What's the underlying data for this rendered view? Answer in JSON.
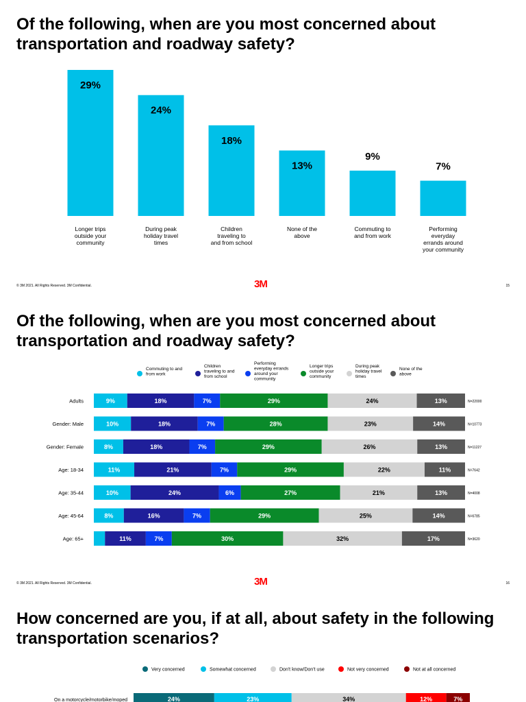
{
  "colors": {
    "commuting": "#00c0e8",
    "children": "#1f1f9a",
    "errands": "#0a3ef0",
    "longer": "#0a8a2a",
    "holiday": "#d3d3d3",
    "none": "#595959",
    "very": "#0a6a78",
    "somewhat": "#00c0e8",
    "dontknow": "#d3d3d3",
    "notvery": "#ff0000",
    "notatall": "#8b0000",
    "logo": "#ff0000"
  },
  "slides": [
    {
      "title": "Of the following, when are you most concerned about transportation and roadway safety?",
      "footer": {
        "copyright": "© 3M 2021. All Rights Reserved. 3M Confidential.",
        "logo": "3M",
        "page": "15"
      }
    },
    {
      "title": "Of the following, when are you most concerned about transportation and roadway safety?",
      "footer": {
        "copyright": "© 3M 2021. All Rights Reserved. 3M Confidential.",
        "logo": "3M",
        "page": "16"
      }
    },
    {
      "title": "How concerned are you, if at all, about safety in the following transportation scenarios?"
    }
  ],
  "chart_data": [
    {
      "type": "bar",
      "categories": [
        "Longer trips outside your community",
        "During peak holiday travel times",
        "Children traveling to and from school",
        "None of the above",
        "Commuting to and from work",
        "Performing everyday errands around your community"
      ],
      "category_lines": [
        [
          "Longer trips",
          "outside your",
          "community"
        ],
        [
          "During peak",
          "holiday travel",
          "times"
        ],
        [
          "Children",
          "traveling to",
          "and from school"
        ],
        [
          "None of the",
          "above"
        ],
        [
          "Commuting to",
          "and from work"
        ],
        [
          "Performing",
          "everyday",
          "errands around",
          "your community"
        ]
      ],
      "values": [
        29,
        24,
        18,
        13,
        9,
        7
      ],
      "data_labels": [
        "29%",
        "24%",
        "18%",
        "13%",
        "9%",
        "7%"
      ],
      "ylim": [
        0,
        29
      ],
      "grid": false,
      "color": "#00c0e8"
    },
    {
      "type": "bar",
      "stacked": true,
      "orientation": "horizontal",
      "legend_position": "top",
      "legend": [
        {
          "key": "commuting",
          "lines": [
            "Commuting to and",
            "from work"
          ]
        },
        {
          "key": "children",
          "lines": [
            "Children",
            "traveling to and",
            "from school"
          ]
        },
        {
          "key": "errands",
          "lines": [
            "Performing",
            "everyday errands",
            "around your",
            "community"
          ]
        },
        {
          "key": "longer",
          "lines": [
            "Longer trips",
            "outside your",
            "community"
          ]
        },
        {
          "key": "holiday",
          "lines": [
            "During peak",
            "holiday travel",
            "times"
          ]
        },
        {
          "key": "none",
          "lines": [
            "None of the",
            "above"
          ]
        }
      ],
      "series": [
        {
          "name": "Commuting to and from work",
          "key": "commuting",
          "values": [
            9,
            10,
            8,
            11,
            10,
            8,
            3
          ]
        },
        {
          "name": "Children traveling to and from school",
          "key": "children",
          "values": [
            18,
            18,
            18,
            21,
            24,
            16,
            11
          ]
        },
        {
          "name": "Performing everyday errands around your community",
          "key": "errands",
          "values": [
            7,
            7,
            7,
            7,
            6,
            7,
            7
          ]
        },
        {
          "name": "Longer trips outside your community",
          "key": "longer",
          "values": [
            29,
            28,
            29,
            29,
            27,
            29,
            30
          ]
        },
        {
          "name": "During peak holiday travel times",
          "key": "holiday",
          "values": [
            24,
            23,
            26,
            22,
            21,
            25,
            32
          ]
        },
        {
          "name": "None of the above",
          "key": "none",
          "values": [
            13,
            14,
            13,
            11,
            13,
            14,
            17
          ]
        }
      ],
      "rows": [
        {
          "label": "Adults",
          "n": "N=22000",
          "labels": [
            "9%",
            "18%",
            "7%",
            "29%",
            "24%",
            "13%"
          ]
        },
        {
          "label": "Gender: Male",
          "n": "N=10773",
          "labels": [
            "10%",
            "18%",
            "7%",
            "28%",
            "23%",
            "14%"
          ]
        },
        {
          "label": "Gender: Female",
          "n": "N=11227",
          "labels": [
            "8%",
            "18%",
            "7%",
            "29%",
            "26%",
            "13%"
          ]
        },
        {
          "label": "Age: 18-34",
          "n": "N=7642",
          "labels": [
            "11%",
            "21%",
            "7%",
            "29%",
            "22%",
            "11%"
          ]
        },
        {
          "label": "Age: 35-44",
          "n": "N=4008",
          "labels": [
            "10%",
            "24%",
            "6%",
            "27%",
            "21%",
            "13%"
          ]
        },
        {
          "label": "Age: 45-64",
          "n": "N=6785",
          "labels": [
            "8%",
            "16%",
            "7%",
            "29%",
            "25%",
            "14%"
          ]
        },
        {
          "label": "Age: 65+",
          "n": "N=3620",
          "labels": [
            "",
            "11%",
            "7%",
            "30%",
            "32%",
            "17%"
          ]
        }
      ],
      "xlim": [
        0,
        100
      ],
      "grid": false
    },
    {
      "type": "bar",
      "stacked": true,
      "orientation": "horizontal",
      "legend_position": "top",
      "legend": [
        {
          "key": "very",
          "label": "Very concerned"
        },
        {
          "key": "somewhat",
          "label": "Somewhat concerned"
        },
        {
          "key": "dontknow",
          "label": "Don't know/Don't use"
        },
        {
          "key": "notvery",
          "label": "Not very concerned"
        },
        {
          "key": "notatall",
          "label": "Not at all concerned"
        }
      ],
      "rows": [
        {
          "label": "On a motorcycle/motorbike/moped",
          "values": [
            24,
            23,
            34,
            12,
            7
          ],
          "labels": [
            "24%",
            "23%",
            "34%",
            "12%",
            "7%"
          ]
        }
      ],
      "xlim": [
        0,
        100
      ],
      "grid": false
    }
  ]
}
